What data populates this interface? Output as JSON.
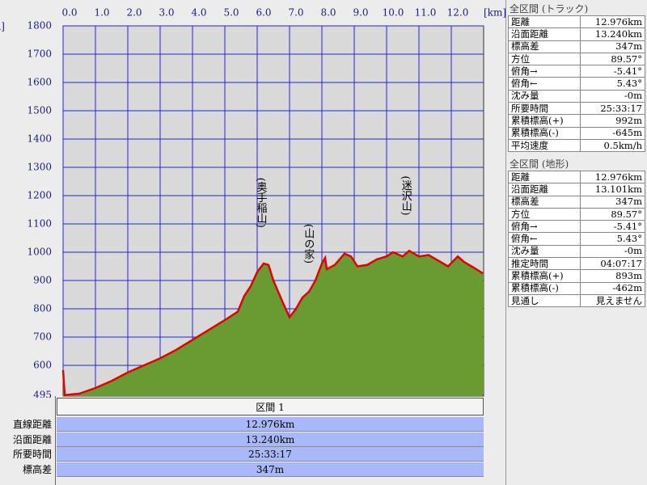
{
  "chart_data": {
    "type": "area",
    "x_label": "[km]",
    "y_label": "[m]",
    "x": [
      0,
      0.05,
      0.5,
      1,
      1.5,
      2,
      2.5,
      3,
      3.5,
      4,
      4.5,
      5,
      5.2,
      5.4,
      5.6,
      5.8,
      6,
      6.2,
      6.35,
      6.5,
      6.8,
      7,
      7.2,
      7.4,
      7.6,
      7.8,
      8.0,
      8.1,
      8.15,
      8.4,
      8.7,
      8.9,
      9.1,
      9.4,
      9.7,
      10.0,
      10.2,
      10.5,
      10.7,
      11,
      11.3,
      11.6,
      11.9,
      12.2,
      12.4,
      12.7,
      12.976
    ],
    "series": [
      {
        "color": "#e00000",
        "fill": "#6a9a32",
        "values": [
          583,
          495,
          500,
          520,
          545,
          575,
          600,
          625,
          655,
          690,
          725,
          760,
          775,
          790,
          845,
          880,
          930,
          960,
          955,
          900,
          820,
          770,
          800,
          840,
          860,
          900,
          960,
          980,
          940,
          955,
          995,
          985,
          950,
          955,
          975,
          985,
          1000,
          985,
          1005,
          985,
          990,
          970,
          950,
          985,
          965,
          945,
          925
        ]
      }
    ],
    "xlim": [
      0,
      13
    ],
    "ylim": [
      495,
      1800
    ],
    "xticks": [
      {
        "value": 0,
        "label": "0.0"
      },
      {
        "value": 1,
        "label": "1.0"
      },
      {
        "value": 2,
        "label": "2.0"
      },
      {
        "value": 3,
        "label": "3.0"
      },
      {
        "value": 4,
        "label": "4.0"
      },
      {
        "value": 5,
        "label": "5.0"
      },
      {
        "value": 6,
        "label": "6.0"
      },
      {
        "value": 7,
        "label": "7.0"
      },
      {
        "value": 8,
        "label": "8.0"
      },
      {
        "value": 9,
        "label": "9.0"
      },
      {
        "value": 10,
        "label": "10.0"
      },
      {
        "value": 11,
        "label": "11.0"
      },
      {
        "value": 12,
        "label": "12.0"
      }
    ],
    "yticks": [
      495,
      600,
      700,
      800,
      900,
      1000,
      1100,
      1200,
      1300,
      1400,
      1500,
      1600,
      1700,
      1800
    ],
    "grid": true,
    "grid_color": "#2828c8",
    "annotations": [
      {
        "text": "(奥手稲山)",
        "x": 6.1,
        "y": 1175
      },
      {
        "text": "(山の家)",
        "x": 7.57,
        "y": 1030
      },
      {
        "text": "(迷沢山)",
        "x": 10.58,
        "y": 1200
      }
    ]
  },
  "section": {
    "title": "区間 1",
    "rows": [
      [
        "直線距離",
        "12.976km"
      ],
      [
        "沿面距離",
        "13.240km"
      ],
      [
        "所要時間",
        "25:33:17"
      ],
      [
        "標高差",
        "347m"
      ]
    ]
  },
  "track_panel": {
    "title": "全区間 (トラック)",
    "rows": [
      [
        "距離",
        "12.976km"
      ],
      [
        "沿面距離",
        "13.240km"
      ],
      [
        "標高差",
        "347m"
      ],
      [
        "方位",
        "89.57°"
      ],
      [
        "俯角→",
        "-5.41°"
      ],
      [
        "俯角←",
        "5.43°"
      ],
      [
        "沈み量",
        "-0m"
      ],
      [
        "所要時間",
        "25:33:17"
      ],
      [
        "累積標高(+)",
        "992m"
      ],
      [
        "累積標高(-)",
        "-645m"
      ],
      [
        "平均速度",
        "0.5km/h"
      ]
    ]
  },
  "terrain_panel": {
    "title": "全区間 (地形)",
    "rows": [
      [
        "距離",
        "12.976km"
      ],
      [
        "沿面距離",
        "13.101km"
      ],
      [
        "標高差",
        "347m"
      ],
      [
        "方位",
        "89.57°"
      ],
      [
        "俯角→",
        "-5.41°"
      ],
      [
        "俯角←",
        "5.43°"
      ],
      [
        "沈み量",
        "-0m"
      ],
      [
        "推定時間",
        "04:07:17"
      ],
      [
        "累積標高(+)",
        "893m"
      ],
      [
        "累積標高(-)",
        "-462m"
      ],
      [
        "見通し",
        "見えません"
      ]
    ]
  }
}
